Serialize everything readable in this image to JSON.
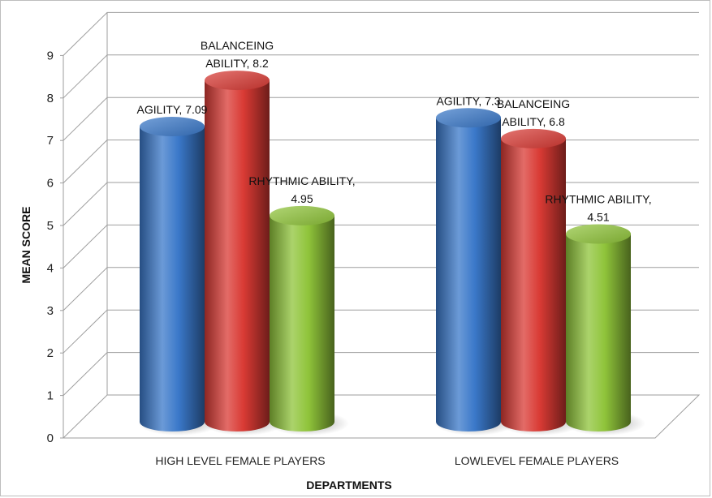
{
  "chart_data": {
    "type": "bar",
    "categories": [
      "HIGH LEVEL FEMALE PLAYERS",
      "LOWLEVEL FEMALE PLAYERS"
    ],
    "series": [
      {
        "name": "AGILITY",
        "values": [
          7.09,
          7.3
        ],
        "label_lines": [
          [
            "AGILITY, 7.09"
          ],
          [
            "AGILITY, 7.3"
          ]
        ],
        "color": "#3a78c9"
      },
      {
        "name": "BALANCEING ABILITY",
        "values": [
          8.2,
          6.8
        ],
        "label_lines": [
          [
            "BALANCEING",
            "ABILITY, 8.2"
          ],
          [
            "BALANCEING",
            "ABILITY, 6.8"
          ]
        ],
        "color": "#d93a34"
      },
      {
        "name": "RHYTHMIC ABILITY",
        "values": [
          4.95,
          4.51
        ],
        "label_lines": [
          [
            "RHYTHMIC ABILITY,",
            "4.95"
          ],
          [
            "RHYTHMIC ABILITY,",
            "4.51"
          ]
        ],
        "color": "#8fc43a"
      }
    ],
    "xlabel": "DEPARTMENTS",
    "ylabel": "MEAN SCORE",
    "ylim": [
      0,
      9
    ],
    "yticks": [
      "0",
      "1",
      "2",
      "3",
      "4",
      "5",
      "6",
      "7",
      "8",
      "9"
    ],
    "grid": true,
    "style": "3d-cylinder"
  }
}
